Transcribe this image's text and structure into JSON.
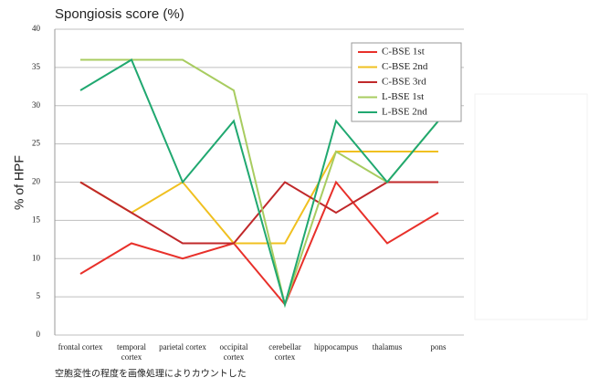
{
  "chart_data": {
    "type": "line",
    "title": "Spongiosis score (%)",
    "y_label": "% of HPF",
    "footnote": "空胞変性の程度を画像処理によりカウントした",
    "categories": [
      "frontal cortex",
      "temporal\ncortex",
      "parietal cortex",
      "occipital\ncortex",
      "cerebellar\ncortex",
      "hippocampus",
      "thalamus",
      "pons"
    ],
    "series": [
      {
        "name": "C-BSE 1st",
        "color": "#e8302a",
        "values": [
          8,
          12,
          10,
          12,
          4,
          20,
          12,
          16
        ]
      },
      {
        "name": "C-BSE 2nd",
        "color": "#f0c020",
        "values": [
          20,
          16,
          20,
          12,
          12,
          24,
          24,
          24
        ]
      },
      {
        "name": "C-BSE 3rd",
        "color": "#c0282a",
        "values": [
          20,
          16,
          12,
          12,
          20,
          16,
          20,
          20
        ]
      },
      {
        "name": "L-BSE 1st",
        "color": "#a8cc60",
        "values": [
          36,
          36,
          36,
          32,
          4,
          24,
          20,
          28
        ]
      },
      {
        "name": "L-BSE 2nd",
        "color": "#20a870",
        "values": [
          32,
          36,
          20,
          28,
          4,
          28,
          20,
          28
        ]
      }
    ],
    "ylim": [
      0,
      40
    ],
    "yticks": [
      0,
      5,
      10,
      15,
      20,
      25,
      30,
      35,
      40
    ],
    "grid": true
  }
}
